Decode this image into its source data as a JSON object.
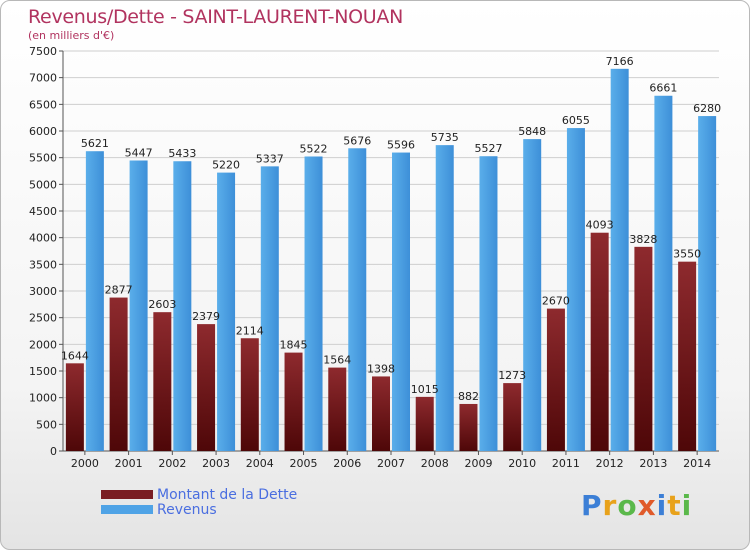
{
  "title": "Revenus/Dette - SAINT-LAURENT-NOUAN",
  "subtitle": "(en milliers d'€)",
  "logo_text": "Proxiti",
  "chart_data": {
    "type": "bar",
    "categories": [
      "2000",
      "2001",
      "2002",
      "2003",
      "2004",
      "2005",
      "2006",
      "2007",
      "2008",
      "2009",
      "2010",
      "2011",
      "2012",
      "2013",
      "2014"
    ],
    "series": [
      {
        "name": "Montant de la Dette",
        "values": [
          1644,
          2877,
          2603,
          2379,
          2114,
          1845,
          1564,
          1398,
          1015,
          882,
          1273,
          2670,
          4093,
          3828,
          3550
        ],
        "labels": [
          "1644",
          "2877",
          "2603",
          "2379",
          "2114",
          "1845",
          "1564",
          "1398",
          "1015",
          "882",
          "1273",
          "2670",
          "4093",
          "3828",
          "3550"
        ],
        "color": "#7a1d22"
      },
      {
        "name": "Revenus",
        "values": [
          5621,
          5447,
          5433,
          5220,
          5337,
          5522,
          5676,
          5596,
          5735,
          5527,
          5848,
          6055,
          7166,
          6661,
          6280
        ],
        "labels": [
          "5621",
          "5447",
          "5433",
          "5220",
          "5337",
          "5522",
          "5676",
          "5596",
          "5735",
          "5527",
          "5848",
          "6055",
          "7166",
          "6661",
          "6280"
        ],
        "color": "#4fa3e6"
      }
    ],
    "yticks": [
      "0",
      "500",
      "1000",
      "1500",
      "2000",
      "2500",
      "3000",
      "3500",
      "4000",
      "4500",
      "5000",
      "5500",
      "6000",
      "6500",
      "7000",
      "7500"
    ],
    "ylim": [
      0,
      7500
    ],
    "grid": true,
    "legend_position": "bottom-left"
  }
}
